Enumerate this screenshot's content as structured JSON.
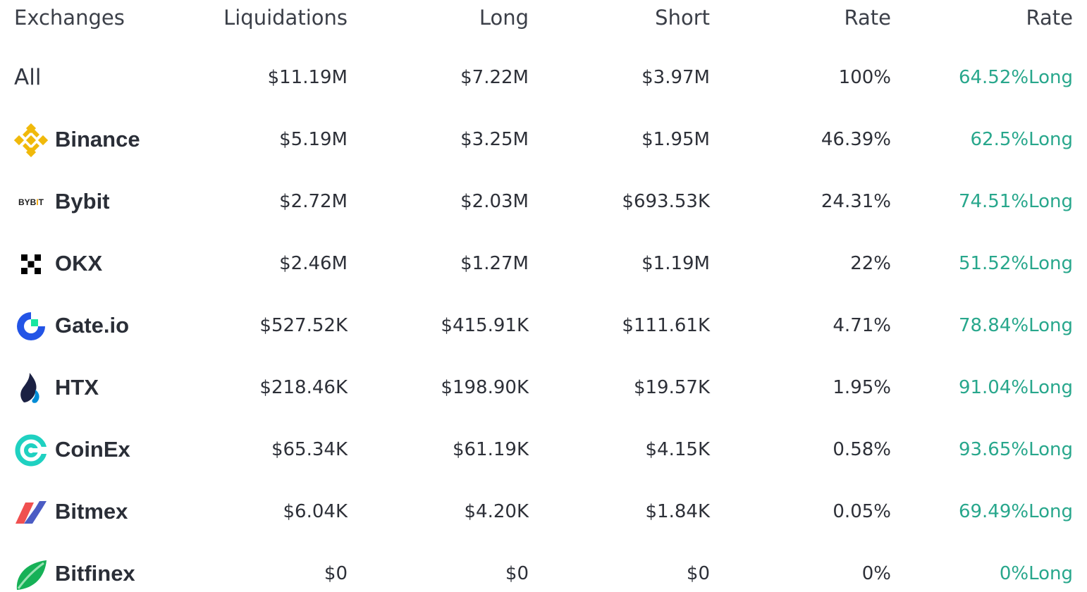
{
  "header": {
    "exchanges": "Exchanges",
    "liquidations": "Liquidations",
    "long": "Long",
    "short": "Short",
    "rate": "Rate",
    "rate2": "Rate"
  },
  "rows": [
    {
      "name": "All",
      "icon": "",
      "liquidations": "$11.19M",
      "long": "$7.22M",
      "short": "$3.97M",
      "rate": "100%",
      "long_rate": "64.52%Long"
    },
    {
      "name": "Binance",
      "icon": "binance-logo-icon",
      "liquidations": "$5.19M",
      "long": "$3.25M",
      "short": "$1.95M",
      "rate": "46.39%",
      "long_rate": "62.5%Long"
    },
    {
      "name": "Bybit",
      "icon": "bybit-logo-icon",
      "logo_text": "BYBIT",
      "liquidations": "$2.72M",
      "long": "$2.03M",
      "short": "$693.53K",
      "rate": "24.31%",
      "long_rate": "74.51%Long"
    },
    {
      "name": "OKX",
      "icon": "okx-logo-icon",
      "liquidations": "$2.46M",
      "long": "$1.27M",
      "short": "$1.19M",
      "rate": "22%",
      "long_rate": "51.52%Long"
    },
    {
      "name": "Gate.io",
      "icon": "gateio-logo-icon",
      "liquidations": "$527.52K",
      "long": "$415.91K",
      "short": "$111.61K",
      "rate": "4.71%",
      "long_rate": "78.84%Long"
    },
    {
      "name": "HTX",
      "icon": "htx-logo-icon",
      "liquidations": "$218.46K",
      "long": "$198.90K",
      "short": "$19.57K",
      "rate": "1.95%",
      "long_rate": "91.04%Long"
    },
    {
      "name": "CoinEx",
      "icon": "coinex-logo-icon",
      "liquidations": "$65.34K",
      "long": "$61.19K",
      "short": "$4.15K",
      "rate": "0.58%",
      "long_rate": "93.65%Long"
    },
    {
      "name": "Bitmex",
      "icon": "bitmex-logo-icon",
      "liquidations": "$6.04K",
      "long": "$4.20K",
      "short": "$1.84K",
      "rate": "0.05%",
      "long_rate": "69.49%Long"
    },
    {
      "name": "Bitfinex",
      "icon": "bitfinex-logo-icon",
      "liquidations": "$0",
      "long": "$0",
      "short": "$0",
      "rate": "0%",
      "long_rate": "0%Long"
    }
  ],
  "colors": {
    "long_rate": "#28a78c",
    "text": "#2d3038",
    "binance": "#f0b90b",
    "gateio": "#2354e6",
    "coinex": "#1fd1c1",
    "bitfinex": "#16b157"
  }
}
